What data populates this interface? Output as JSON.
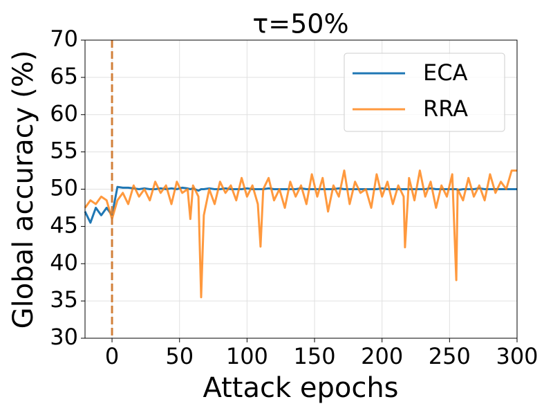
{
  "chart_data": {
    "type": "line",
    "title": "τ=50%",
    "xlabel": "Attack epochs",
    "ylabel": "Global accuracy (%)",
    "x": [
      -20,
      -16,
      -12,
      -8,
      -4,
      0,
      4,
      8,
      12,
      16,
      20,
      24,
      28,
      32,
      36,
      40,
      44,
      48,
      52,
      56,
      58,
      60,
      64,
      66,
      68,
      72,
      76,
      80,
      84,
      88,
      92,
      96,
      100,
      104,
      108,
      110,
      112,
      116,
      120,
      124,
      128,
      132,
      136,
      140,
      144,
      148,
      152,
      156,
      160,
      164,
      168,
      172,
      176,
      180,
      184,
      188,
      192,
      196,
      200,
      204,
      208,
      212,
      216,
      217,
      220,
      224,
      228,
      232,
      236,
      240,
      244,
      248,
      252,
      255,
      256,
      260,
      264,
      268,
      272,
      276,
      280,
      284,
      288,
      292,
      296,
      300
    ],
    "series": [
      {
        "name": "ECA",
        "color": "#1f77b4",
        "values": [
          47,
          45.5,
          47.5,
          46.5,
          47.5,
          46.5,
          50.3,
          50.2,
          50.2,
          50.1,
          50,
          50.1,
          50,
          50,
          50.1,
          50,
          50.1,
          50,
          50.2,
          50.1,
          50,
          50.1,
          49.8,
          50,
          50,
          50.1,
          50,
          50,
          50.1,
          50,
          50,
          50,
          50.1,
          50,
          50,
          50,
          50,
          50.1,
          50,
          50,
          50,
          50,
          50,
          50.1,
          50,
          50,
          50,
          50,
          50,
          50,
          50.1,
          50,
          50,
          50,
          50,
          50,
          50,
          50,
          50.1,
          50,
          50,
          50,
          50,
          50,
          50,
          50,
          50,
          50,
          50.1,
          50,
          50,
          50,
          50,
          50,
          49.9,
          50,
          50,
          50,
          50.1,
          50,
          50,
          50,
          50,
          50,
          50,
          50
        ]
      },
      {
        "name": "RRA",
        "color": "#ff7f0e",
        "values": [
          47.5,
          48.5,
          48,
          49,
          48.5,
          46,
          48.5,
          49.5,
          48,
          50.5,
          49,
          50,
          48.5,
          51,
          49.5,
          50.5,
          48,
          51,
          49.5,
          50,
          46,
          50.5,
          49,
          35.5,
          46.5,
          50,
          48,
          51,
          49.5,
          50.5,
          48.5,
          51.5,
          49,
          50.5,
          48,
          42.3,
          50,
          51.5,
          48.5,
          50,
          47.5,
          51,
          49,
          50.5,
          48,
          52,
          49,
          51.5,
          47,
          50.5,
          49,
          52.5,
          48,
          51,
          49.5,
          50,
          47.5,
          52,
          49,
          51,
          48,
          50.5,
          49,
          42.2,
          51.5,
          48.5,
          52.5,
          49,
          51,
          47.5,
          50.5,
          49,
          52,
          37.8,
          50,
          48.5,
          51.5,
          49,
          50.5,
          48.5,
          52,
          49.5,
          51,
          50,
          52.5,
          52.5
        ]
      }
    ],
    "xlim": [
      -20,
      300
    ],
    "ylim": [
      30,
      70
    ],
    "xticks": [
      0,
      50,
      100,
      150,
      200,
      250,
      300
    ],
    "yticks": [
      30,
      35,
      40,
      45,
      50,
      55,
      60,
      65,
      70
    ],
    "vline": 0,
    "vline_color": "#d2803a",
    "grid": true,
    "legend": "upper right"
  }
}
